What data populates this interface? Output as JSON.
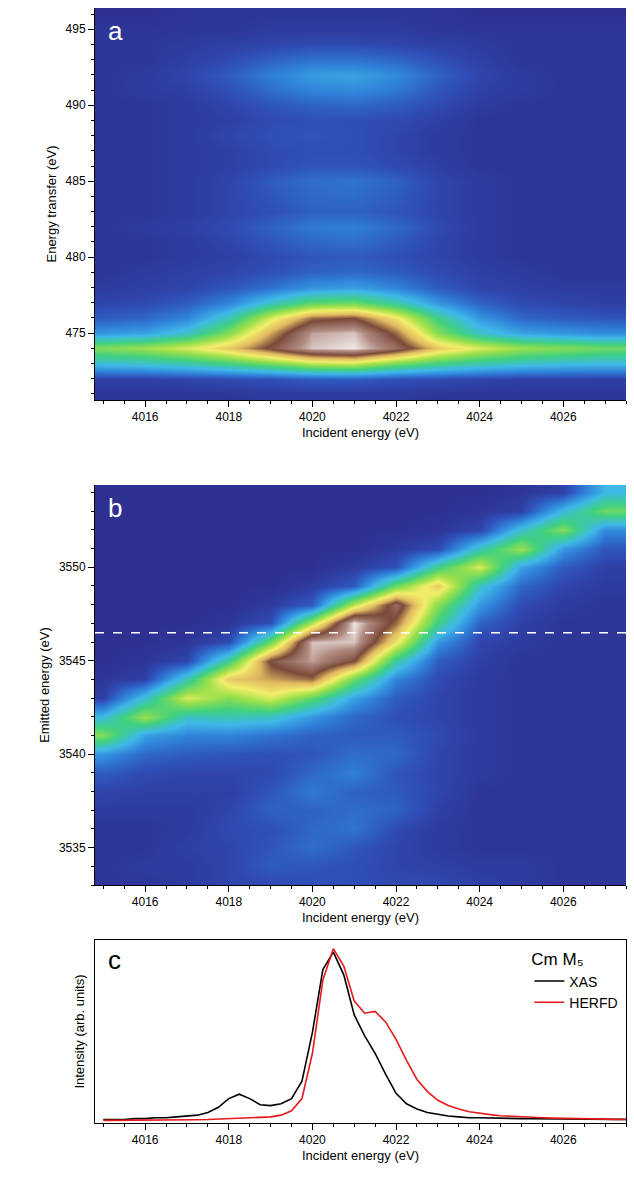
{
  "chart_data": [
    {
      "type": "heatmap",
      "panel_label": "a",
      "x_label": "Incident energy (eV)",
      "y_label": "Energy transfer (eV)",
      "xlim": [
        4014.8,
        4027.5
      ],
      "ylim": [
        470.6,
        496.4
      ],
      "xticks": [
        4016,
        4018,
        4020,
        4022,
        4024,
        4026
      ],
      "yticks": [
        475,
        480,
        485,
        490,
        495
      ],
      "zlim": [
        0,
        100
      ],
      "x": [
        4015,
        4016,
        4017,
        4018,
        4019,
        4020,
        4021,
        4022,
        4023,
        4024,
        4025,
        4026,
        4027
      ],
      "y": [
        471,
        472,
        473,
        474,
        475,
        476,
        477,
        478,
        479,
        480,
        481,
        482,
        483,
        484,
        485,
        486,
        487,
        488,
        489,
        490,
        491,
        492,
        493,
        494,
        495,
        496
      ],
      "z": [
        [
          1,
          1,
          1,
          1,
          2,
          2,
          2,
          2,
          1,
          1,
          1,
          1,
          1
        ],
        [
          3,
          3,
          4,
          5,
          6,
          8,
          8,
          6,
          5,
          4,
          3,
          3,
          3
        ],
        [
          25,
          27,
          30,
          35,
          42,
          50,
          52,
          42,
          35,
          30,
          27,
          25,
          24
        ],
        [
          45,
          48,
          55,
          65,
          80,
          95,
          98,
          85,
          65,
          55,
          48,
          45,
          42
        ],
        [
          18,
          20,
          28,
          45,
          70,
          92,
          95,
          75,
          45,
          28,
          20,
          18,
          16
        ],
        [
          8,
          10,
          15,
          30,
          55,
          75,
          78,
          60,
          35,
          18,
          10,
          8,
          7
        ],
        [
          4,
          5,
          8,
          15,
          28,
          40,
          42,
          32,
          18,
          9,
          5,
          4,
          3
        ],
        [
          2,
          3,
          4,
          7,
          12,
          18,
          20,
          15,
          8,
          4,
          3,
          2,
          2
        ],
        [
          1,
          2,
          3,
          4,
          6,
          9,
          10,
          8,
          5,
          3,
          2,
          1,
          1
        ],
        [
          1,
          1,
          2,
          3,
          5,
          7,
          8,
          6,
          4,
          2,
          1,
          1,
          1
        ],
        [
          1,
          1,
          2,
          4,
          7,
          10,
          11,
          8,
          4,
          2,
          1,
          1,
          1
        ],
        [
          1,
          2,
          3,
          5,
          9,
          13,
          14,
          10,
          5,
          2,
          1,
          1,
          1
        ],
        [
          1,
          1,
          2,
          4,
          6,
          9,
          9,
          7,
          4,
          2,
          1,
          1,
          1
        ],
        [
          1,
          1,
          2,
          4,
          7,
          10,
          11,
          8,
          4,
          2,
          1,
          1,
          1
        ],
        [
          1,
          1,
          2,
          4,
          8,
          11,
          12,
          9,
          4,
          2,
          1,
          1,
          1
        ],
        [
          1,
          1,
          2,
          3,
          5,
          7,
          7,
          5,
          3,
          1,
          1,
          1,
          1
        ],
        [
          1,
          1,
          2,
          3,
          5,
          6,
          6,
          4,
          2,
          1,
          1,
          1,
          1
        ],
        [
          1,
          1,
          2,
          4,
          6,
          7,
          6,
          4,
          2,
          1,
          1,
          1,
          1
        ],
        [
          1,
          1,
          2,
          3,
          5,
          6,
          6,
          5,
          3,
          1,
          1,
          1,
          1
        ],
        [
          1,
          1,
          2,
          4,
          7,
          9,
          10,
          8,
          5,
          2,
          1,
          1,
          1
        ],
        [
          1,
          2,
          3,
          6,
          11,
          15,
          16,
          13,
          7,
          3,
          2,
          1,
          1
        ],
        [
          1,
          2,
          4,
          8,
          14,
          19,
          20,
          16,
          9,
          4,
          2,
          1,
          1
        ],
        [
          1,
          1,
          3,
          5,
          9,
          12,
          12,
          10,
          6,
          3,
          1,
          1,
          1
        ],
        [
          1,
          1,
          2,
          3,
          4,
          5,
          5,
          4,
          3,
          2,
          1,
          1,
          1
        ],
        [
          1,
          1,
          1,
          1,
          2,
          2,
          2,
          2,
          1,
          1,
          1,
          1,
          1
        ],
        [
          0,
          0,
          1,
          1,
          1,
          1,
          1,
          1,
          1,
          0,
          0,
          0,
          0
        ]
      ]
    },
    {
      "type": "heatmap",
      "panel_label": "b",
      "x_label": "Incident energy (eV)",
      "y_label": "Emitted energy (eV)",
      "xlim": [
        4014.8,
        4027.5
      ],
      "ylim": [
        3533,
        3554.4
      ],
      "xticks": [
        4016,
        4018,
        4020,
        4022,
        4024,
        4026
      ],
      "yticks": [
        3535,
        3540,
        3545,
        3550
      ],
      "zlim": [
        0,
        100
      ],
      "cut_y": 3546.5,
      "line_style": "dashed",
      "x": [
        4015,
        4016,
        4017,
        4018,
        4019,
        4020,
        4021,
        4022,
        4023,
        4024,
        4025,
        4026,
        4027
      ],
      "y": [
        3533,
        3534,
        3535,
        3536,
        3537,
        3538,
        3539,
        3540,
        3541,
        3542,
        3543,
        3544,
        3545,
        3546,
        3547,
        3548,
        3549,
        3550,
        3551,
        3552,
        3553,
        3554
      ],
      "z": [
        [
          1,
          1,
          2,
          4,
          5,
          6,
          6,
          5,
          5,
          3,
          2,
          1,
          1
        ],
        [
          1,
          2,
          2,
          4,
          8,
          7,
          6,
          4,
          3,
          2,
          2,
          1,
          1
        ],
        [
          1,
          1,
          3,
          4,
          7,
          11,
          7,
          4,
          2,
          1,
          1,
          1,
          1
        ],
        [
          1,
          1,
          2,
          5,
          6,
          10,
          12,
          5,
          2,
          1,
          1,
          1,
          1
        ],
        [
          2,
          2,
          2,
          4,
          9,
          9,
          11,
          9,
          3,
          1,
          1,
          1,
          1
        ],
        [
          4,
          3,
          3,
          3,
          7,
          13,
          9,
          8,
          4,
          1,
          1,
          1,
          1
        ],
        [
          8,
          5,
          4,
          4,
          5,
          10,
          14,
          7,
          4,
          2,
          1,
          1,
          1
        ],
        [
          18,
          10,
          8,
          7,
          6,
          7,
          11,
          10,
          4,
          2,
          1,
          1,
          1
        ],
        [
          45,
          20,
          15,
          15,
          12,
          9,
          8,
          8,
          5,
          2,
          1,
          1,
          1
        ],
        [
          25,
          48,
          28,
          30,
          28,
          18,
          10,
          6,
          4,
          2,
          1,
          1,
          1
        ],
        [
          3,
          27,
          55,
          45,
          55,
          40,
          20,
          8,
          4,
          2,
          1,
          1,
          1
        ],
        [
          1,
          3,
          30,
          65,
          70,
          75,
          42,
          15,
          5,
          2,
          1,
          1,
          1
        ],
        [
          0,
          1,
          4,
          35,
          80,
          92,
          78,
          32,
          8,
          3,
          1,
          1,
          1
        ],
        [
          0,
          0,
          1,
          5,
          42,
          95,
          95,
          60,
          18,
          4,
          2,
          1,
          1
        ],
        [
          0,
          0,
          0,
          1,
          6,
          50,
          98,
          75,
          35,
          9,
          3,
          1,
          1
        ],
        [
          0,
          0,
          0,
          0,
          2,
          8,
          52,
          85,
          45,
          18,
          5,
          2,
          1
        ],
        [
          0,
          0,
          0,
          0,
          0,
          2,
          8,
          42,
          65,
          28,
          10,
          4,
          2
        ],
        [
          0,
          0,
          0,
          0,
          0,
          0,
          2,
          6,
          35,
          55,
          20,
          8,
          3
        ],
        [
          0,
          0,
          0,
          0,
          0,
          0,
          0,
          2,
          5,
          30,
          48,
          18,
          7
        ],
        [
          0,
          0,
          0,
          0,
          0,
          0,
          0,
          0,
          1,
          4,
          27,
          45,
          16
        ],
        [
          0,
          0,
          0,
          0,
          0,
          0,
          0,
          0,
          0,
          1,
          3,
          25,
          42
        ],
        [
          0,
          0,
          0,
          0,
          0,
          0,
          0,
          0,
          0,
          0,
          1,
          3,
          24
        ]
      ]
    },
    {
      "type": "line",
      "panel_label": "c",
      "x_label": "Incident energy (eV)",
      "y_label": "Intensity (arb. units)",
      "xlim": [
        4014.8,
        4027.5
      ],
      "ylim": [
        0,
        1.05
      ],
      "xticks": [
        4016,
        4018,
        4020,
        4022,
        4024,
        4026
      ],
      "yticks": [],
      "tick_labels": "x",
      "legend": "upper right",
      "legend_title": "Cm M₅",
      "x": [
        4015,
        4015.25,
        4015.5,
        4015.75,
        4016,
        4016.25,
        4016.5,
        4016.75,
        4017,
        4017.25,
        4017.5,
        4017.75,
        4018,
        4018.25,
        4018.5,
        4018.75,
        4019,
        4019.25,
        4019.5,
        4019.75,
        4020,
        4020.25,
        4020.5,
        4020.75,
        4021,
        4021.25,
        4021.5,
        4021.75,
        4022,
        4022.25,
        4022.5,
        4022.75,
        4023,
        4023.25,
        4023.5,
        4023.75,
        4024,
        4024.25,
        4024.5,
        4024.75,
        4025,
        4025.25,
        4025.5,
        4025.75,
        4026,
        4026.25,
        4026.5,
        4026.75,
        4027,
        4027.25,
        4027.5
      ],
      "series": [
        {
          "name": "XAS",
          "color": "#000000",
          "values": [
            0.02,
            0.02,
            0.02,
            0.025,
            0.025,
            0.03,
            0.03,
            0.035,
            0.04,
            0.045,
            0.06,
            0.09,
            0.14,
            0.165,
            0.14,
            0.105,
            0.1,
            0.11,
            0.14,
            0.24,
            0.52,
            0.88,
            0.98,
            0.85,
            0.62,
            0.5,
            0.4,
            0.28,
            0.17,
            0.11,
            0.08,
            0.06,
            0.05,
            0.04,
            0.035,
            0.03,
            0.03,
            0.028,
            0.027,
            0.026,
            0.025,
            0.025,
            0.024,
            0.024,
            0.023,
            0.023,
            0.022,
            0.022,
            0.022,
            0.021,
            0.021
          ]
        },
        {
          "name": "HERFD",
          "color": "#e41a1c",
          "values": [
            0.015,
            0.015,
            0.015,
            0.015,
            0.016,
            0.016,
            0.017,
            0.017,
            0.018,
            0.019,
            0.02,
            0.022,
            0.024,
            0.026,
            0.028,
            0.03,
            0.035,
            0.045,
            0.07,
            0.14,
            0.4,
            0.82,
            1.0,
            0.9,
            0.7,
            0.63,
            0.64,
            0.58,
            0.48,
            0.36,
            0.25,
            0.18,
            0.13,
            0.1,
            0.08,
            0.065,
            0.055,
            0.048,
            0.042,
            0.038,
            0.035,
            0.032,
            0.03,
            0.028,
            0.026,
            0.025,
            0.024,
            0.023,
            0.022,
            0.021,
            0.02
          ]
        }
      ]
    }
  ]
}
